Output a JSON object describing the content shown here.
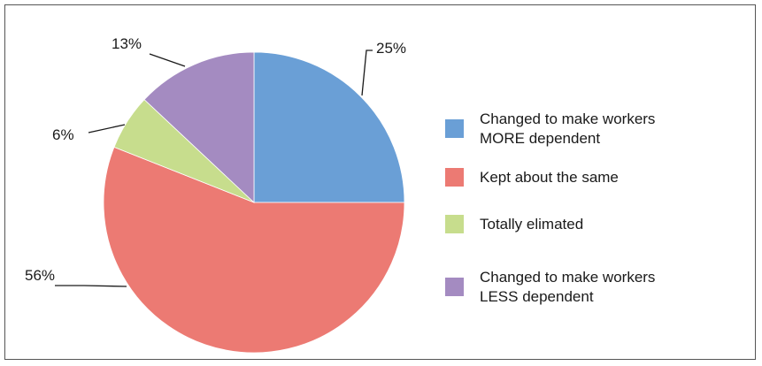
{
  "chart_data": {
    "type": "pie",
    "title": "",
    "start_angle_deg": 0,
    "direction": "clockwise",
    "slices": [
      {
        "label": "Changed to make workers MORE dependent",
        "legend_lines": [
          "Changed to make workers",
          "MORE dependent"
        ],
        "value": 25,
        "display": "25%",
        "color": "#6a9fd6"
      },
      {
        "label": "Kept about the same",
        "legend_lines": [
          "Kept about the same"
        ],
        "value": 56,
        "display": "56%",
        "color": "#ec7a73"
      },
      {
        "label": "Totally elimated",
        "legend_lines": [
          "Totally elimated"
        ],
        "value": 6,
        "display": "6%",
        "color": "#c7dd8d"
      },
      {
        "label": "Changed to make workers LESS dependent",
        "legend_lines": [
          "Changed to make workers",
          "LESS dependent"
        ],
        "value": 13,
        "display": "13%",
        "color": "#a48bc1"
      }
    ],
    "legend_position": "right"
  }
}
